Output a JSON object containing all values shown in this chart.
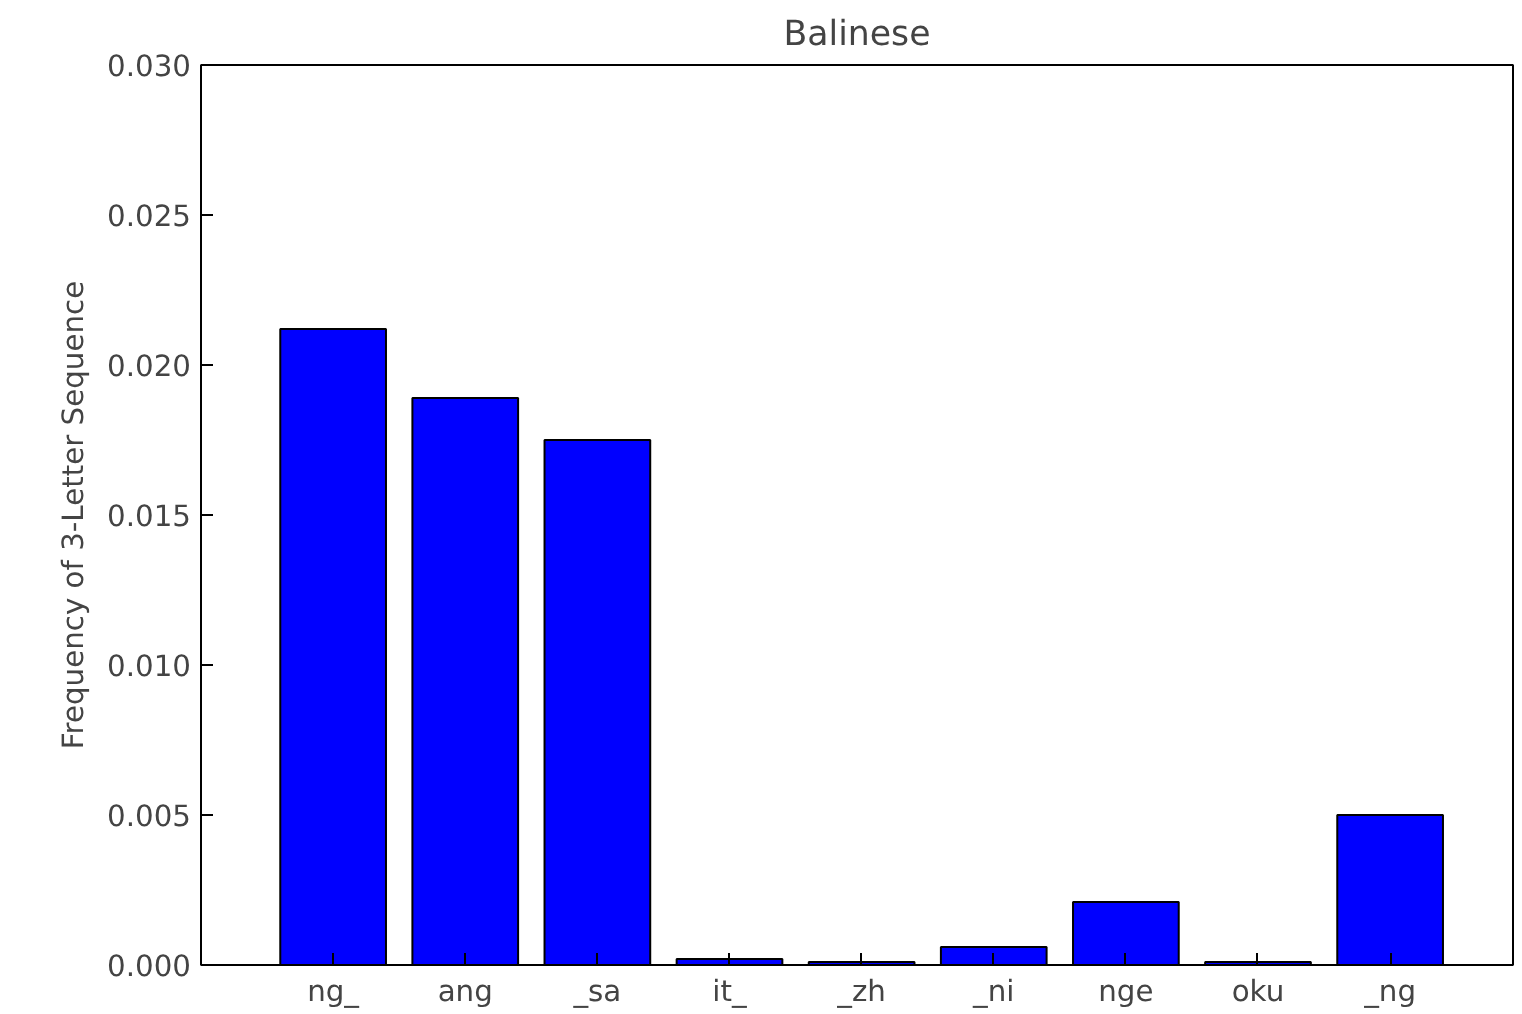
{
  "chart_data": {
    "type": "bar",
    "title": "Balinese",
    "ylabel": "Frequency of 3-Letter Sequence",
    "categories": [
      "ng_",
      "ang",
      "_sa",
      "it_",
      "_zh",
      "_ni",
      "nge",
      "oku",
      "_ng"
    ],
    "values": [
      0.0212,
      0.0189,
      0.0175,
      0.0002,
      0.0001,
      0.0006,
      0.0021,
      0.0001,
      0.005
    ],
    "color": "#0000ff",
    "ylim": [
      0,
      0.03
    ],
    "yticks": [
      {
        "value": 0,
        "label": "0.000"
      },
      {
        "value": 0.005,
        "label": "0.005"
      },
      {
        "value": 0.01,
        "label": "0.010"
      },
      {
        "value": 0.015,
        "label": "0.015"
      },
      {
        "value": 0.02,
        "label": "0.020"
      },
      {
        "value": 0.025,
        "label": "0.025"
      },
      {
        "value": 0.03,
        "label": "0.030"
      }
    ],
    "grid": false
  }
}
